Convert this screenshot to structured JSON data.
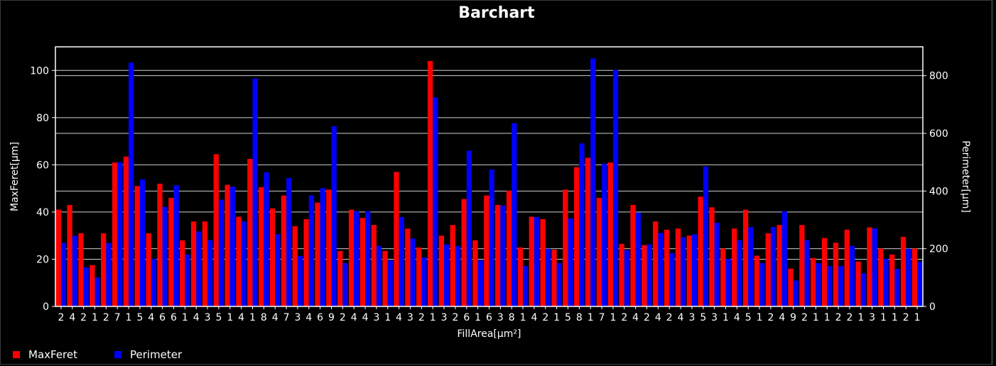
{
  "chart_data": {
    "type": "bar",
    "title": "Barchart",
    "xlabel": "FillArea[µm²]",
    "ylabel": "MaxFeret[µm]",
    "y2label": "Perimeter[µm]",
    "ylim": [
      0,
      110
    ],
    "y2lim": [
      0,
      900
    ],
    "yticks": [
      0,
      20,
      40,
      60,
      80,
      100
    ],
    "y2ticks": [
      0,
      200,
      400,
      600,
      800
    ],
    "grid": true,
    "legend_position": "bottom-left",
    "categories": [
      "2",
      "4",
      "2",
      "1",
      "2",
      "7",
      "1",
      "5",
      "4",
      "6",
      "6",
      "1",
      "4",
      "3",
      "5",
      "1",
      "4",
      "1",
      "8",
      "4",
      "7",
      "3",
      "4",
      "6",
      "9",
      "2",
      "4",
      "4",
      "3",
      "1",
      "4",
      "3",
      "2",
      "1",
      "3",
      "2",
      "6",
      "1",
      "6",
      "3",
      "8",
      "1",
      "4",
      "2",
      "1",
      "5",
      "8",
      "1",
      "7",
      "1",
      "2",
      "4",
      "2",
      "4",
      "2",
      "4",
      "3",
      "5",
      "3",
      "1",
      "4",
      "5",
      "1",
      "2",
      "4",
      "9",
      "2",
      "1",
      "1",
      "2",
      "2",
      "1",
      "3",
      "1",
      "1",
      "2",
      "1"
    ],
    "series": [
      {
        "name": "MaxFeret",
        "color": "#ff0000",
        "axis": "left",
        "values": [
          41,
          43,
          31,
          17.5,
          31,
          61,
          63.5,
          51,
          31,
          52,
          46,
          28,
          36,
          36,
          64.5,
          51.5,
          38,
          62.5,
          50.5,
          41.5,
          47,
          34,
          37,
          44,
          49.5,
          23.5,
          41,
          37.5,
          34.5,
          23.5,
          57,
          33,
          25,
          104,
          30,
          34.5,
          45.5,
          28,
          47,
          43,
          49,
          25,
          38,
          37,
          24,
          49.5,
          59,
          63,
          46,
          61,
          26.5,
          43,
          26,
          36,
          32.5,
          33,
          30,
          46.5,
          42,
          24.5,
          33,
          41,
          21.5,
          31,
          34.5,
          16,
          34.5,
          20.5,
          29,
          27,
          32.5,
          19,
          33.5,
          24.5,
          22,
          29.5,
          24.5
        ]
      },
      {
        "name": "Perimeter",
        "color": "#0000ff",
        "axis": "right",
        "values": [
          220,
          245,
          135,
          100,
          220,
          500,
          845,
          440,
          165,
          345,
          420,
          180,
          260,
          230,
          370,
          415,
          295,
          790,
          465,
          250,
          445,
          175,
          385,
          410,
          625,
          150,
          330,
          330,
          210,
          160,
          310,
          235,
          170,
          725,
          215,
          210,
          540,
          160,
          475,
          350,
          635,
          140,
          310,
          200,
          150,
          305,
          565,
          860,
          495,
          820,
          195,
          325,
          215,
          255,
          185,
          240,
          250,
          485,
          290,
          165,
          230,
          275,
          150,
          275,
          330,
          90,
          230,
          150,
          140,
          140,
          210,
          115,
          270,
          165,
          130,
          200,
          155
        ]
      }
    ]
  }
}
